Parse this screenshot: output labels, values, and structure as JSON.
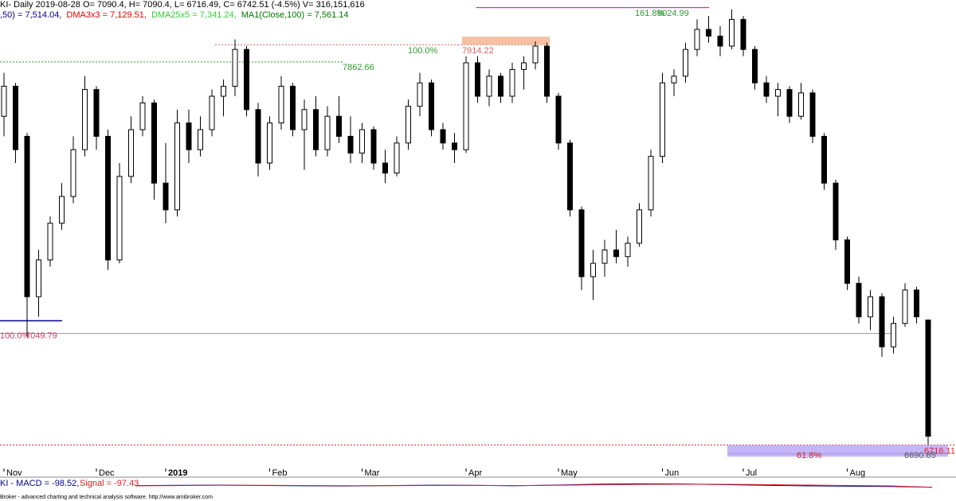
{
  "chart_data": {
    "type": "candlestick",
    "header": "KI- Daily 2019-08-28 O= 7090.4, H= 7090.4, L= 6716.49, C= 6742.51 (-4.5%) V= 316,151,616",
    "indicators": [
      {
        "text": ",50) = 7,514.04,",
        "color": "#00008b"
      },
      {
        "text": "DMA3x3 = 7,129.51,",
        "color": "#e00000"
      },
      {
        "text": "DMA25x5 = 7,341.24,",
        "color": "#33cc33"
      },
      {
        "text": "MA1(Close,100) = 7,561.14",
        "color": "#007700"
      }
    ],
    "ylim": [
      6620,
      8048
    ],
    "categories": [
      "Nov",
      null,
      null,
      null,
      null,
      null,
      null,
      null,
      "Dec",
      null,
      null,
      null,
      null,
      null,
      "2019",
      null,
      null,
      null,
      null,
      null,
      null,
      null,
      null,
      "Feb",
      null,
      null,
      null,
      null,
      null,
      null,
      null,
      "Mar",
      null,
      null,
      null,
      null,
      null,
      null,
      null,
      null,
      "Apr",
      null,
      null,
      null,
      null,
      null,
      null,
      null,
      "May",
      null,
      null,
      null,
      null,
      null,
      null,
      null,
      null,
      "Jun",
      null,
      null,
      null,
      null,
      null,
      null,
      "Jul",
      null,
      null,
      null,
      null,
      null,
      null,
      null,
      null,
      "Aug",
      null,
      null,
      null,
      null,
      null,
      null,
      null
    ],
    "ohlc": [
      [
        7700,
        7830,
        7640,
        7790
      ],
      [
        7790,
        7800,
        7560,
        7600
      ],
      [
        7640,
        7650,
        7040,
        7160
      ],
      [
        7160,
        7300,
        7100,
        7270
      ],
      [
        7270,
        7400,
        7250,
        7380
      ],
      [
        7380,
        7500,
        7360,
        7460
      ],
      [
        7460,
        7640,
        7440,
        7600
      ],
      [
        7600,
        7820,
        7580,
        7780
      ],
      [
        7780,
        7790,
        7600,
        7640
      ],
      [
        7640,
        7660,
        7240,
        7270
      ],
      [
        7270,
        7560,
        7260,
        7520
      ],
      [
        7520,
        7700,
        7500,
        7660
      ],
      [
        7660,
        7760,
        7640,
        7740
      ],
      [
        7740,
        7750,
        7450,
        7500
      ],
      [
        7500,
        7620,
        7380,
        7420
      ],
      [
        7420,
        7720,
        7400,
        7680
      ],
      [
        7680,
        7720,
        7560,
        7600
      ],
      [
        7600,
        7700,
        7580,
        7660
      ],
      [
        7660,
        7780,
        7640,
        7760
      ],
      [
        7760,
        7810,
        7700,
        7790
      ],
      [
        7790,
        7930,
        7760,
        7900
      ],
      [
        7900,
        7910,
        7700,
        7720
      ],
      [
        7720,
        7740,
        7520,
        7560
      ],
      [
        7560,
        7700,
        7540,
        7680
      ],
      [
        7680,
        7820,
        7660,
        7790
      ],
      [
        7790,
        7800,
        7640,
        7660
      ],
      [
        7660,
        7750,
        7540,
        7720
      ],
      [
        7720,
        7760,
        7580,
        7600
      ],
      [
        7600,
        7730,
        7580,
        7700
      ],
      [
        7700,
        7760,
        7620,
        7640
      ],
      [
        7640,
        7700,
        7560,
        7590
      ],
      [
        7590,
        7680,
        7560,
        7660
      ],
      [
        7660,
        7670,
        7540,
        7560
      ],
      [
        7560,
        7600,
        7500,
        7530
      ],
      [
        7530,
        7640,
        7520,
        7620
      ],
      [
        7620,
        7750,
        7600,
        7730
      ],
      [
        7730,
        7830,
        7700,
        7800
      ],
      [
        7800,
        7810,
        7640,
        7660
      ],
      [
        7660,
        7680,
        7600,
        7620
      ],
      [
        7620,
        7650,
        7560,
        7600
      ],
      [
        7600,
        7880,
        7590,
        7860
      ],
      [
        7860,
        7880,
        7740,
        7760
      ],
      [
        7760,
        7840,
        7730,
        7820
      ],
      [
        7820,
        7830,
        7740,
        7760
      ],
      [
        7760,
        7860,
        7740,
        7840
      ],
      [
        7840,
        7880,
        7780,
        7860
      ],
      [
        7860,
        7924,
        7840,
        7910
      ],
      [
        7910,
        7920,
        7740,
        7760
      ],
      [
        7760,
        7770,
        7600,
        7620
      ],
      [
        7620,
        7630,
        7400,
        7420
      ],
      [
        7420,
        7430,
        7180,
        7220
      ],
      [
        7220,
        7300,
        7150,
        7260
      ],
      [
        7260,
        7330,
        7220,
        7300
      ],
      [
        7300,
        7360,
        7260,
        7280
      ],
      [
        7280,
        7340,
        7250,
        7320
      ],
      [
        7320,
        7440,
        7310,
        7420
      ],
      [
        7420,
        7600,
        7400,
        7580
      ],
      [
        7580,
        7830,
        7560,
        7800
      ],
      [
        7800,
        7840,
        7760,
        7820
      ],
      [
        7820,
        7920,
        7800,
        7900
      ],
      [
        7900,
        7990,
        7880,
        7960
      ],
      [
        7960,
        8000,
        7920,
        7940
      ],
      [
        7940,
        7970,
        7880,
        7910
      ],
      [
        7910,
        8020,
        7900,
        7990
      ],
      [
        7990,
        8000,
        7880,
        7900
      ],
      [
        7900,
        7910,
        7780,
        7800
      ],
      [
        7800,
        7820,
        7740,
        7760
      ],
      [
        7760,
        7800,
        7700,
        7780
      ],
      [
        7780,
        7790,
        7680,
        7700
      ],
      [
        7700,
        7800,
        7690,
        7770
      ],
      [
        7770,
        7780,
        7620,
        7640
      ],
      [
        7640,
        7650,
        7480,
        7500
      ],
      [
        7500,
        7510,
        7300,
        7330
      ],
      [
        7330,
        7340,
        7180,
        7200
      ],
      [
        7200,
        7220,
        7080,
        7100
      ],
      [
        7100,
        7180,
        7060,
        7160
      ],
      [
        7160,
        7170,
        6980,
        7010
      ],
      [
        7010,
        7100,
        6990,
        7080
      ],
      [
        7080,
        7200,
        7070,
        7180
      ],
      [
        7180,
        7190,
        7080,
        7100
      ],
      [
        7090.4,
        7090.4,
        6716.49,
        6742.51
      ]
    ],
    "levels": [
      {
        "value": 7862.66,
        "color": "#339933"
      },
      {
        "value": 7914.22,
        "color": "#e06060"
      },
      {
        "value": 8024.99,
        "color": "#339933"
      },
      {
        "value": 7049.79,
        "color": "#d04070"
      },
      {
        "value": 6716.11,
        "color": "#e02020"
      },
      {
        "value": 6690.65,
        "color": "#555555"
      }
    ],
    "fib_labels": [
      "100.0%",
      "100.0%",
      "161.8%",
      "61.8%"
    ],
    "macd_label": "KI - MACD = -98.52,",
    "signal_label": "Signal = -97.43",
    "macd_ylim": [
      -400,
      400
    ],
    "macd": [
      20,
      40,
      60,
      30,
      10,
      -10,
      20,
      50,
      40,
      10,
      60,
      120,
      150,
      140,
      90,
      40,
      0,
      -20,
      -40,
      -98.52
    ],
    "signal": [
      10,
      25,
      40,
      40,
      30,
      15,
      15,
      30,
      35,
      25,
      40,
      80,
      110,
      125,
      115,
      90,
      60,
      30,
      0,
      -97.43
    ],
    "footer": "Broker - advanced charting and technical analysis software. http://www.amibroker.com"
  }
}
